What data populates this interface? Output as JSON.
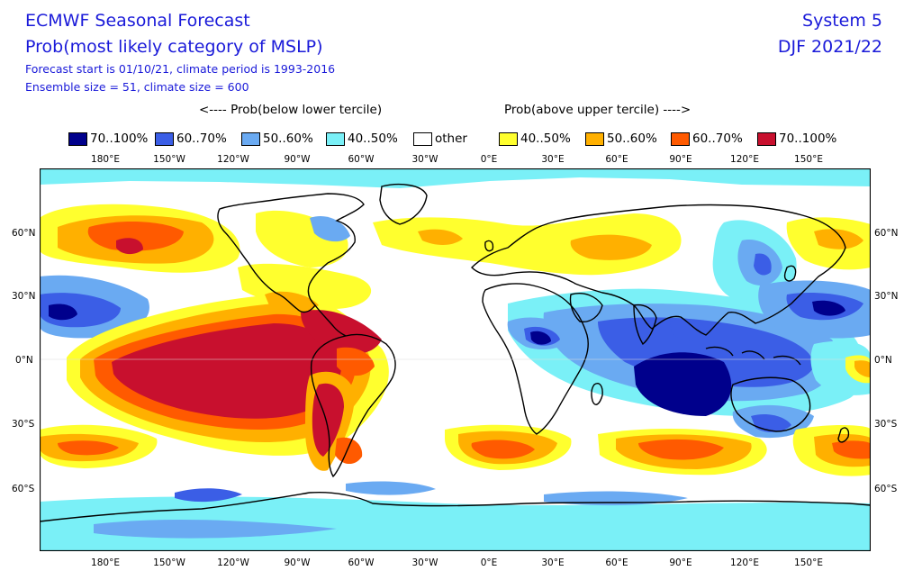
{
  "header": {
    "title_line1": "ECMWF Seasonal Forecast",
    "title_line2": "Prob(most likely category of MSLP)",
    "subtitle_line1": "Forecast start is 01/10/21, climate period is 1993-2016",
    "subtitle_line2": "Ensemble size = 51, climate size = 600",
    "system": "System 5",
    "season": "DJF 2021/22"
  },
  "legend": {
    "below_label": "<---- Prob(below lower tercile)",
    "above_label": "Prob(above upper tercile) ---->",
    "items": [
      {
        "label": "70..100%",
        "color": "#00008c"
      },
      {
        "label": "60..70%",
        "color": "#3b5ee6"
      },
      {
        "label": "50..60%",
        "color": "#6aaaf2"
      },
      {
        "label": "40..50%",
        "color": "#7af0f7"
      },
      {
        "label": "other",
        "color": "#ffffff"
      },
      {
        "label": "40..50%",
        "color": "#ffff2e"
      },
      {
        "label": "50..60%",
        "color": "#ffb000"
      },
      {
        "label": "60..70%",
        "color": "#ff5a00"
      },
      {
        "label": "70..100%",
        "color": "#c8102e"
      }
    ]
  },
  "axes": {
    "lon_labels": [
      "180°E",
      "150°W",
      "120°W",
      "90°W",
      "60°W",
      "30°W",
      "0°E",
      "30°E",
      "60°E",
      "90°E",
      "120°E",
      "150°E"
    ],
    "lat_labels": [
      "60°N",
      "30°N",
      "0°N",
      "30°S",
      "60°S"
    ]
  }
}
